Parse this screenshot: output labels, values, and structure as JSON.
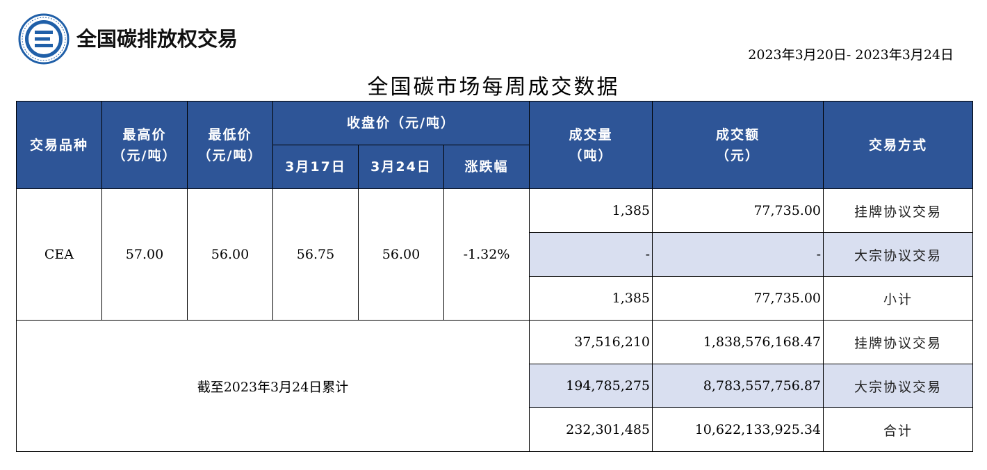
{
  "header": {
    "brand": "全国碳排放权交易",
    "date_range": "2023年3月20日- 2023年3月24日",
    "title": "全国碳市场每周成交数据"
  },
  "colors": {
    "header_bg": "#2e5597",
    "shade_row": "#d9dff0"
  },
  "table": {
    "headers": {
      "variety": "交易品种",
      "high_l1": "最高价",
      "high_l2": "（元/吨）",
      "low_l1": "最低价",
      "low_l2": "（元/吨）",
      "close_group": "收盘价（元/吨）",
      "close_prev": "3月17日",
      "close_cur": "3月24日",
      "change": "涨跌幅",
      "volume_l1": "成交量",
      "volume_l2": "（吨）",
      "amount_l1": "成交额",
      "amount_l2": "（元）",
      "mode": "交易方式"
    },
    "cea": {
      "variety": "CEA",
      "high": "57.00",
      "low": "56.00",
      "close_prev": "56.75",
      "close_cur": "56.00",
      "change": "-1.32%"
    },
    "weekly_rows": [
      {
        "volume": "1,385",
        "amount": "77,735.00",
        "mode": "挂牌协议交易"
      },
      {
        "volume": "-",
        "amount": "-",
        "mode": "大宗协议交易"
      },
      {
        "volume": "1,385",
        "amount": "77,735.00",
        "mode": "小计"
      }
    ],
    "cumulative_label": "截至2023年3月24日累计",
    "cumulative_rows": [
      {
        "volume": "37,516,210",
        "amount": "1,838,576,168.47",
        "mode": "挂牌协议交易"
      },
      {
        "volume": "194,785,275",
        "amount": "8,783,557,756.87",
        "mode": "大宗协议交易"
      },
      {
        "volume": "232,301,485",
        "amount": "10,622,133,925.34",
        "mode": "合计"
      }
    ]
  }
}
